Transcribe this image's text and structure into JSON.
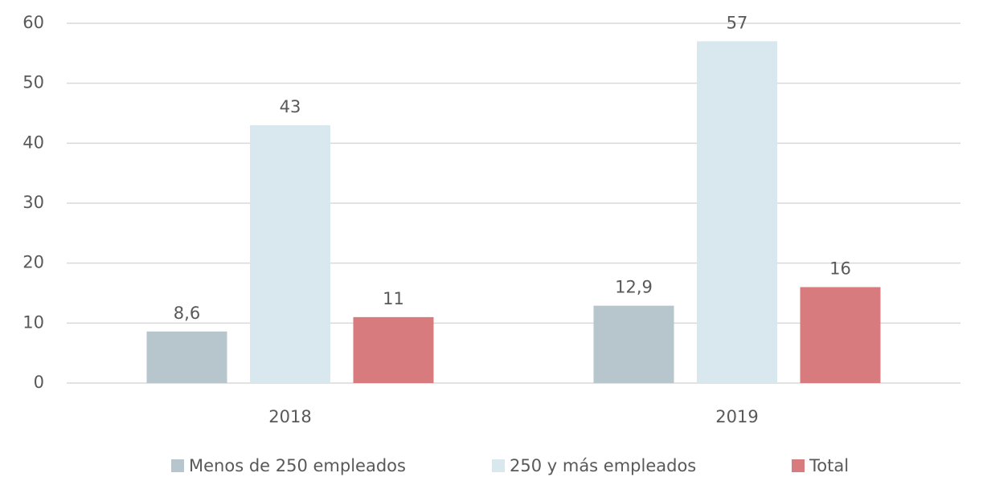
{
  "chart_data": {
    "type": "bar",
    "categories": [
      "2018",
      "2019"
    ],
    "series": [
      {
        "name": "Menos de 250 empleados",
        "color": "#b7c6cc",
        "values": [
          8.6,
          12.9
        ],
        "value_labels": [
          "8,6",
          "12,9"
        ]
      },
      {
        "name": "250 y más empleados",
        "color": "#d9e7ef",
        "values": [
          43,
          57
        ]
      },
      {
        "name": "Total",
        "color": "#d87b7e",
        "values": [
          11,
          16
        ]
      }
    ],
    "ylim": [
      0,
      60
    ],
    "yticks": [
      0,
      10,
      20,
      30,
      40,
      50,
      60
    ],
    "grid": true,
    "legend": "bottom"
  }
}
